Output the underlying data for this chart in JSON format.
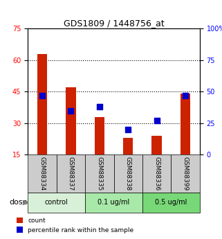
{
  "title": "GDS1809 / 1448756_at",
  "samples": [
    "GSM88334",
    "GSM88337",
    "GSM88335",
    "GSM88338",
    "GSM88336",
    "GSM88399"
  ],
  "count_values": [
    63,
    47,
    33,
    23,
    24,
    44
  ],
  "percentile_values": [
    47,
    35,
    38,
    20,
    27,
    47
  ],
  "ylim_left": [
    15,
    75
  ],
  "ylim_right": [
    0,
    100
  ],
  "yticks_left": [
    15,
    30,
    45,
    60,
    75
  ],
  "yticks_right": [
    0,
    25,
    50,
    75,
    100
  ],
  "groups": [
    {
      "label": "control",
      "indices": [
        0,
        1
      ],
      "color": "#d8f0d8"
    },
    {
      "label": "0.1 ug/ml",
      "indices": [
        2,
        3
      ],
      "color": "#a8e8a8"
    },
    {
      "label": "0.5 ug/ml",
      "indices": [
        4,
        5
      ],
      "color": "#78d878"
    }
  ],
  "bar_color": "#cc2200",
  "dot_color": "#0000cc",
  "bar_width": 0.35,
  "dot_size": 30,
  "background_color": "#ffffff",
  "tick_area_color": "#cccccc",
  "dose_label": "dose",
  "legend_count": "count",
  "legend_percentile": "percentile rank within the sample"
}
